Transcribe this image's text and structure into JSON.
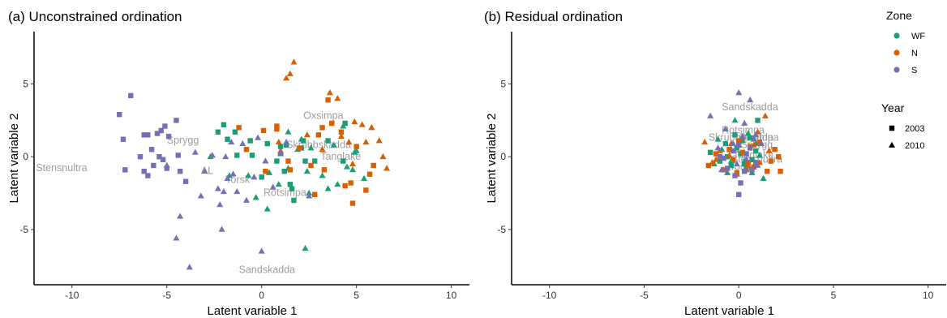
{
  "colors": {
    "WF": "#1b9e77",
    "N": "#d95f02",
    "S": "#7570b3",
    "site_label": "#9e9e9e"
  },
  "legend": {
    "zone_title": "Zone",
    "zones": [
      {
        "label": "WF",
        "color": "#1b9e77"
      },
      {
        "label": "N",
        "color": "#d95f02"
      },
      {
        "label": "S",
        "color": "#7570b3"
      }
    ],
    "year_title": "Year",
    "years": [
      {
        "label": "2003",
        "shape": "square"
      },
      {
        "label": "2010",
        "shape": "triangle"
      }
    ]
  },
  "chart_data": [
    {
      "type": "scatter",
      "title": "(a) Unconstrained ordination",
      "xlabel": "Latent variable 1",
      "ylabel": "Latent variable 2",
      "xlim": [
        -12,
        11
      ],
      "ylim": [
        -8.8,
        8.6
      ],
      "xticks": [
        -10,
        -5,
        0,
        5,
        10
      ],
      "yticks": [
        -5,
        0,
        5
      ],
      "grid": false,
      "site_labels": [
        {
          "text": "Stensnultra",
          "x": -11.9,
          "y": -1.0
        },
        {
          "text": "Sprygg",
          "x": -5.0,
          "y": 0.9
        },
        {
          "text": "AL",
          "x": -3.2,
          "y": -1.2
        },
        {
          "text": "Torsk",
          "x": -1.9,
          "y": -1.8
        },
        {
          "text": "Rotsimpa",
          "x": 0.1,
          "y": -2.7
        },
        {
          "text": "Skrubbskadda",
          "x": 1.3,
          "y": 0.6
        },
        {
          "text": "Oxsimpa",
          "x": 2.2,
          "y": 2.6
        },
        {
          "text": "Tanglake",
          "x": 3.1,
          "y": -0.2
        },
        {
          "text": "Sandskadda",
          "x": -1.2,
          "y": -8.0
        }
      ],
      "series": [
        {
          "zone": "WF",
          "year": "2003",
          "color": "#1b9e77",
          "shape": "square",
          "x": [
            -2.3,
            -2.0,
            -1.8,
            -1.4,
            -1.3,
            -0.6,
            -0.5,
            0.3,
            0.8,
            1.0,
            1.2,
            1.6,
            1.3,
            2.1,
            1.7,
            2.3,
            2.8,
            3.5,
            4.3,
            4.4,
            0.0,
            1.5,
            2.2
          ],
          "y": [
            1.7,
            2.2,
            1.2,
            1.7,
            0.1,
            1.1,
            0.1,
            0.9,
            -0.3,
            0.7,
            -1.0,
            -2.2,
            0.8,
            0.6,
            -3.0,
            -0.3,
            -0.3,
            1.1,
            -0.3,
            2.3,
            -1.4,
            -1.9,
            1.1
          ]
        },
        {
          "zone": "WF",
          "year": "2010",
          "color": "#1b9e77",
          "shape": "triangle",
          "x": [
            -2.7,
            -1.7,
            -0.7,
            0.3,
            0.9,
            1.4,
            1.4,
            2.1,
            2.4,
            2.6,
            3.2,
            3.8,
            4.0,
            4.3,
            4.5,
            4.9,
            5.4,
            5.8,
            2.3,
            0.4,
            -0.3,
            1.0,
            2.5,
            3.5,
            4.8,
            5.0,
            1.9
          ],
          "y": [
            0.0,
            -1.3,
            -1.3,
            -3.6,
            -1.9,
            -0.8,
            1.7,
            1.2,
            -1.0,
            0.6,
            -1.3,
            0.8,
            -1.9,
            2.1,
            -0.7,
            0.3,
            -1.5,
            2.0,
            -6.3,
            -1.1,
            -2.8,
            0.2,
            -2.5,
            -2.2,
            -0.9,
            0.4,
            0.5
          ]
        },
        {
          "zone": "N",
          "year": "2003",
          "color": "#d95f02",
          "shape": "square",
          "x": [
            -1.2,
            -0.8,
            0.1,
            0.2,
            0.8,
            1.4,
            2.0,
            2.6,
            3.0,
            3.3,
            3.5,
            3.7,
            4.2,
            4.4,
            4.8,
            5.5,
            5.7,
            5.9,
            1.5,
            0.8,
            3.2,
            2.8,
            5.0,
            4.7
          ],
          "y": [
            2.0,
            0.5,
            1.8,
            -1.0,
            1.9,
            -0.3,
            0.6,
            -0.6,
            1.5,
            -0.9,
            3.9,
            2.3,
            1.7,
            -2.0,
            -3.2,
            -2.3,
            -1.2,
            -0.6,
            -0.9,
            2.1,
            2.0,
            -2.6,
            0.7,
            -1.8
          ]
        },
        {
          "zone": "N",
          "year": "2010",
          "color": "#d95f02",
          "shape": "triangle",
          "x": [
            0.9,
            1.0,
            1.3,
            1.5,
            1.7,
            2.4,
            3.2,
            3.6,
            4.0,
            4.2,
            4.6,
            4.9,
            5.3,
            5.5,
            5.8,
            6.2,
            6.4,
            6.6,
            4.8
          ],
          "y": [
            1.0,
            0.4,
            5.4,
            5.7,
            6.5,
            1.5,
            0.5,
            4.4,
            4.0,
            1.4,
            1.0,
            2.4,
            2.2,
            1.0,
            2.0,
            1.1,
            0.0,
            -0.8,
            -0.5
          ]
        },
        {
          "zone": "S",
          "year": "2003",
          "color": "#7570b3",
          "shape": "square",
          "x": [
            -7.5,
            -7.3,
            -7.2,
            -6.9,
            -6.4,
            -6.2,
            -6.0,
            -6.0,
            -5.8,
            -5.5,
            -5.3,
            -5.2,
            -5.0,
            -4.9,
            -4.5,
            -4.4,
            -4.3,
            -4.0,
            -5.1,
            -5.4,
            -5.7,
            -6.2
          ],
          "y": [
            2.9,
            1.2,
            -0.9,
            4.2,
            0.0,
            1.5,
            1.5,
            -1.3,
            0.5,
            1.6,
            1.8,
            -0.2,
            -0.8,
            1.4,
            2.5,
            0.1,
            -1.0,
            -1.7,
            2.1,
            0.0,
            -0.6,
            -1.0
          ]
        },
        {
          "zone": "S",
          "year": "2010",
          "color": "#7570b3",
          "shape": "triangle",
          "x": [
            -5.0,
            -4.5,
            -4.3,
            -3.8,
            -3.5,
            -3.2,
            -2.6,
            -2.3,
            -2.2,
            -2.1,
            -2.0,
            -1.9,
            -1.6,
            -1.5,
            -1.3,
            -1.0,
            -0.8,
            -0.4,
            -0.2,
            0.2,
            0.6,
            1.0,
            1.3,
            2.5,
            -3.0,
            -1.8,
            0.0
          ],
          "y": [
            -0.6,
            -5.6,
            -4.1,
            -7.6,
            0.3,
            -2.7,
            0.1,
            -2.2,
            -3.3,
            -5.0,
            -2.4,
            0.0,
            1.0,
            -1.2,
            -2.4,
            0.9,
            -3.0,
            -1.4,
            1.3,
            -0.3,
            -2.1,
            0.3,
            1.0,
            -2.7,
            -1.0,
            -1.5,
            -6.5
          ]
        }
      ]
    },
    {
      "type": "scatter",
      "title": "(b) Residual ordination",
      "xlabel": "Latent variable 1",
      "ylabel": "Latent variable 2",
      "xlim": [
        -12,
        11
      ],
      "ylim": [
        -8.8,
        8.6
      ],
      "xticks": [
        -10,
        -5,
        0,
        5,
        10
      ],
      "yticks": [
        -5,
        0,
        5
      ],
      "grid": false,
      "site_labels": [
        {
          "text": "Sandskadda",
          "x": -0.9,
          "y": 3.2
        },
        {
          "text": "Rotsimpa",
          "x": -0.9,
          "y": 1.6
        },
        {
          "text": "Skrubbskadda",
          "x": -1.6,
          "y": 1.1
        },
        {
          "text": "Oxsimpa",
          "x": 0.0,
          "y": 1.1
        },
        {
          "text": "Tanglake",
          "x": -0.3,
          "y": -0.1
        },
        {
          "text": "AL",
          "x": -0.6,
          "y": 0.3
        },
        {
          "text": "Torsk",
          "x": -0.5,
          "y": -0.9
        },
        {
          "text": "Sprygg",
          "x": 0.1,
          "y": 0.6
        },
        {
          "text": "Stensnultra",
          "x": -0.4,
          "y": -0.4
        }
      ],
      "series": [
        {
          "zone": "WF",
          "year": "2003",
          "color": "#1b9e77",
          "shape": "square",
          "x": [
            -1.5,
            -1.0,
            -0.7,
            -0.4,
            -0.2,
            0.1,
            0.4,
            0.6,
            0.9,
            1.0,
            0.3,
            -0.6,
            0.7,
            -0.1
          ],
          "y": [
            0.3,
            -0.3,
            0.9,
            -0.6,
            1.5,
            0.2,
            -0.8,
            1.3,
            0.4,
            2.5,
            -0.5,
            0.0,
            -0.2,
            0.6
          ]
        },
        {
          "zone": "WF",
          "year": "2010",
          "color": "#1b9e77",
          "shape": "triangle",
          "x": [
            -1.3,
            -0.9,
            -0.6,
            -0.2,
            0.0,
            0.3,
            0.5,
            0.7,
            1.1,
            1.3,
            -0.4,
            0.2,
            0.9,
            -1.1
          ],
          "y": [
            -0.5,
            0.5,
            -1.1,
            2.5,
            0.8,
            -0.3,
            1.6,
            -1.1,
            0.1,
            -1.5,
            -0.3,
            1.1,
            0.9,
            1.2
          ]
        },
        {
          "zone": "N",
          "year": "2003",
          "color": "#d95f02",
          "shape": "square",
          "x": [
            -1.6,
            -1.2,
            -0.8,
            -0.5,
            -0.1,
            0.2,
            0.5,
            0.8,
            1.1,
            1.5,
            1.9,
            2.1,
            2.2,
            0.0,
            -0.3,
            0.6,
            1.7
          ],
          "y": [
            -0.6,
            0.2,
            -0.9,
            0.5,
            -1.1,
            0.3,
            -0.4,
            -0.7,
            1.0,
            -1.0,
            0.5,
            0.0,
            -1.0,
            1.1,
            -0.2,
            0.7,
            -0.3
          ]
        },
        {
          "zone": "N",
          "year": "2010",
          "color": "#d95f02",
          "shape": "triangle",
          "x": [
            -1.8,
            -1.4,
            -1.0,
            -0.7,
            -0.4,
            -0.1,
            0.2,
            0.5,
            0.8,
            1.1,
            1.4,
            1.6,
            -1.2,
            0.4,
            1.0,
            -0.5
          ],
          "y": [
            1.0,
            -0.4,
            0.4,
            -0.9,
            0.9,
            -1.2,
            1.3,
            -0.6,
            0.8,
            -0.4,
            2.8,
            0.4,
            -0.2,
            -0.9,
            1.7,
            0.1
          ]
        },
        {
          "zone": "S",
          "year": "2003",
          "color": "#7570b3",
          "shape": "square",
          "x": [
            -1.0,
            -0.6,
            -0.3,
            0.0,
            0.1,
            0.3,
            0.6,
            0.9,
            -0.2,
            0.4,
            0.0,
            -0.8,
            0.7
          ],
          "y": [
            0.0,
            -0.8,
            0.4,
            -2.6,
            -1.8,
            -1.0,
            0.6,
            -0.4,
            -1.3,
            0.2,
            0.8,
            -0.1,
            -0.9
          ]
        },
        {
          "zone": "S",
          "year": "2010",
          "color": "#7570b3",
          "shape": "triangle",
          "x": [
            -1.5,
            -1.1,
            -0.7,
            -0.3,
            0.0,
            0.2,
            0.4,
            0.6,
            0.8,
            1.0,
            1.2,
            -0.9,
            0.3,
            -0.1,
            0.9
          ],
          "y": [
            2.8,
            0.6,
            1.9,
            0.9,
            4.4,
            1.4,
            -0.2,
            3.9,
            1.2,
            -0.6,
            0.9,
            -0.9,
            2.3,
            -0.5,
            1.5
          ]
        }
      ]
    }
  ]
}
